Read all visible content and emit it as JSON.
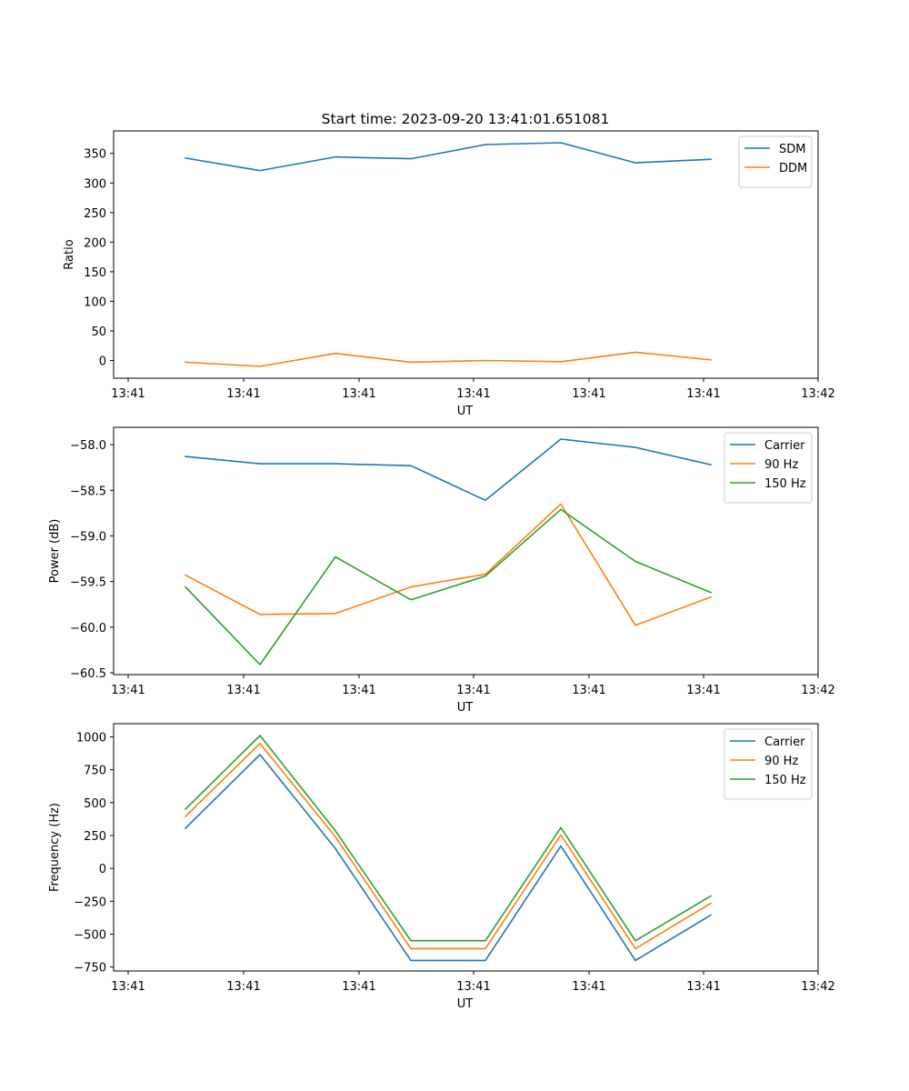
{
  "title": "Start time: 2023-09-20 13:41:01.651081",
  "colors": {
    "c1": "#1f77b4",
    "c2": "#ff7f0e",
    "c3": "#2ca02c"
  },
  "chart_data": [
    {
      "type": "line",
      "xlabel": "UT",
      "ylabel": "Ratio",
      "x_ticks": [
        "13:41",
        "13:41",
        "13:41",
        "13:41",
        "13:41",
        "13:41",
        "13:42"
      ],
      "ylim": [
        -30,
        388
      ],
      "y_ticks": [
        0,
        50,
        100,
        150,
        200,
        250,
        300,
        350
      ],
      "legend_position": "top-right",
      "series": [
        {
          "name": "SDM",
          "color": "#1f77b4",
          "values": [
            342,
            321,
            344,
            341,
            365,
            368,
            334,
            340
          ]
        },
        {
          "name": "DDM",
          "color": "#ff7f0e",
          "values": [
            -3,
            -10,
            12,
            -3,
            0,
            -2,
            14,
            1
          ]
        }
      ]
    },
    {
      "type": "line",
      "xlabel": "UT",
      "ylabel": "Power (dB)",
      "x_ticks": [
        "13:41",
        "13:41",
        "13:41",
        "13:41",
        "13:41",
        "13:41",
        "13:42"
      ],
      "ylim": [
        -60.52,
        -57.81
      ],
      "y_ticks": [
        -60.5,
        -60.0,
        -59.5,
        -59.0,
        -58.5,
        -58.0
      ],
      "y_tick_labels": [
        "−60.5",
        "−60.0",
        "−59.5",
        "−59.0",
        "−58.5",
        "−58.0"
      ],
      "legend_position": "top-right",
      "series": [
        {
          "name": "Carrier",
          "color": "#1f77b4",
          "values": [
            -58.13,
            -58.21,
            -58.21,
            -58.23,
            -58.61,
            -57.94,
            -58.03,
            -58.22
          ]
        },
        {
          "name": "90 Hz",
          "color": "#ff7f0e",
          "values": [
            -59.43,
            -59.86,
            -59.85,
            -59.56,
            -59.42,
            -58.65,
            -59.98,
            -59.67
          ]
        },
        {
          "name": "150 Hz",
          "color": "#2ca02c",
          "values": [
            -59.56,
            -60.41,
            -59.23,
            -59.7,
            -59.44,
            -58.71,
            -59.28,
            -59.62
          ]
        }
      ]
    },
    {
      "type": "line",
      "xlabel": "UT",
      "ylabel": "Frequency (Hz)",
      "x_ticks": [
        "13:41",
        "13:41",
        "13:41",
        "13:41",
        "13:41",
        "13:41",
        "13:42"
      ],
      "ylim": [
        -780,
        1100
      ],
      "y_ticks": [
        -750,
        -500,
        -250,
        0,
        250,
        500,
        750,
        1000
      ],
      "y_tick_labels": [
        "−750",
        "−500",
        "−250",
        "0",
        "250",
        "500",
        "750",
        "1000"
      ],
      "legend_position": "top-right",
      "series": [
        {
          "name": "Carrier",
          "color": "#1f77b4",
          "values": [
            305,
            865,
            150,
            -700,
            -700,
            170,
            -700,
            -355
          ]
        },
        {
          "name": "90 Hz",
          "color": "#ff7f0e",
          "values": [
            395,
            950,
            240,
            -610,
            -610,
            255,
            -610,
            -265
          ]
        },
        {
          "name": "150 Hz",
          "color": "#2ca02c",
          "values": [
            450,
            1010,
            285,
            -550,
            -550,
            310,
            -550,
            -210
          ]
        }
      ]
    }
  ]
}
